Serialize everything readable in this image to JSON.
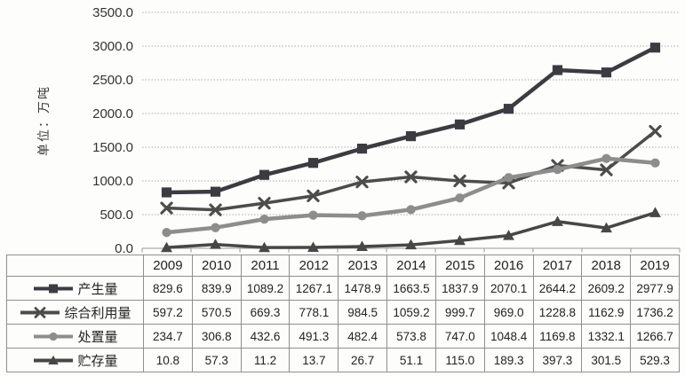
{
  "chart_data": {
    "type": "line",
    "title": "",
    "y_axis_title": "单位：万吨",
    "categories": [
      "2009",
      "2010",
      "2011",
      "2012",
      "2013",
      "2014",
      "2015",
      "2016",
      "2017",
      "2018",
      "2019"
    ],
    "series": [
      {
        "name": "产生量",
        "marker": "square",
        "color": "#3b3b41",
        "values": [
          829.6,
          839.9,
          1089.2,
          1267.1,
          1478.9,
          1663.5,
          1837.9,
          2070.1,
          2644.2,
          2609.2,
          2977.9
        ]
      },
      {
        "name": "综合利用量",
        "marker": "x",
        "color": "#4c4c4c",
        "values": [
          597.2,
          570.5,
          669.3,
          778.1,
          984.5,
          1059.2,
          999.7,
          969.0,
          1228.8,
          1162.9,
          1736.2
        ]
      },
      {
        "name": "处置量",
        "marker": "circle",
        "color": "#8d8d8d",
        "values": [
          234.7,
          306.8,
          432.6,
          491.3,
          482.4,
          573.8,
          747.0,
          1048.4,
          1169.8,
          1332.1,
          1266.7
        ]
      },
      {
        "name": "贮存量",
        "marker": "triangle",
        "color": "#474747",
        "values": [
          10.8,
          57.3,
          11.2,
          13.7,
          26.7,
          51.1,
          115.0,
          189.3,
          397.3,
          301.5,
          529.3
        ]
      }
    ],
    "ylim": [
      0,
      3500
    ],
    "y_tick_step": 500,
    "value_decimals": 1,
    "grid": true,
    "gridline_color": "#ababab",
    "axis_color": "#999999",
    "legend_position": "table-left"
  }
}
